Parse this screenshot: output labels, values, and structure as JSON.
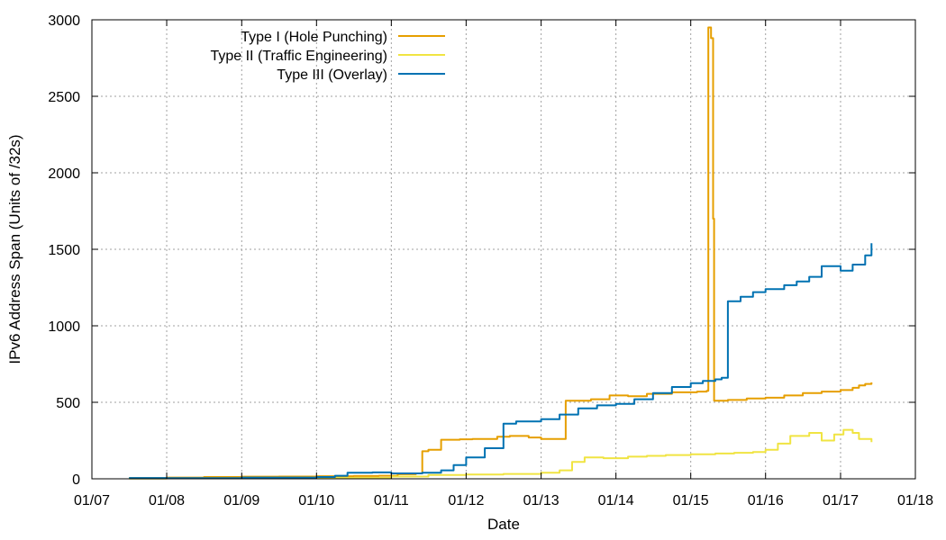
{
  "chart_data": {
    "type": "line",
    "title": "",
    "xlabel": "Date",
    "ylabel": "IPv6 Address Span (Units of /32s)",
    "x_ticks": [
      "01/07",
      "01/08",
      "01/09",
      "01/10",
      "01/11",
      "01/12",
      "01/13",
      "01/14",
      "01/15",
      "01/16",
      "01/17",
      "01/18"
    ],
    "xlim": [
      "2007-01-01",
      "2018-01-01"
    ],
    "ylim": [
      0,
      3000
    ],
    "y_ticks": [
      0,
      500,
      1000,
      1500,
      2000,
      2500,
      3000
    ],
    "grid": true,
    "legend_position": "top-left",
    "step": true,
    "series": [
      {
        "name": "Type I (Hole Punching)",
        "color": "#e69f00",
        "points": [
          [
            "2007-07-01",
            5
          ],
          [
            "2008-01-01",
            8
          ],
          [
            "2008-07-01",
            12
          ],
          [
            "2009-01-01",
            14
          ],
          [
            "2009-07-01",
            15
          ],
          [
            "2010-01-01",
            17
          ],
          [
            "2010-07-01",
            18
          ],
          [
            "2010-11-01",
            20
          ],
          [
            "2011-02-01",
            30
          ],
          [
            "2011-05-01",
            35
          ],
          [
            "2011-06-01",
            180
          ],
          [
            "2011-07-01",
            190
          ],
          [
            "2011-09-01",
            255
          ],
          [
            "2011-12-01",
            258
          ],
          [
            "2012-02-01",
            260
          ],
          [
            "2012-06-01",
            275
          ],
          [
            "2012-08-01",
            280
          ],
          [
            "2012-11-01",
            270
          ],
          [
            "2013-01-01",
            260
          ],
          [
            "2013-04-15",
            260
          ],
          [
            "2013-05-01",
            510
          ],
          [
            "2013-09-01",
            520
          ],
          [
            "2013-12-01",
            545
          ],
          [
            "2014-03-01",
            540
          ],
          [
            "2014-06-01",
            555
          ],
          [
            "2014-10-01",
            565
          ],
          [
            "2015-02-01",
            570
          ],
          [
            "2015-03-20",
            575
          ],
          [
            "2015-03-28",
            2950
          ],
          [
            "2015-04-10",
            2880
          ],
          [
            "2015-04-20",
            1700
          ],
          [
            "2015-04-25",
            510
          ],
          [
            "2015-07-01",
            515
          ],
          [
            "2015-10-01",
            525
          ],
          [
            "2016-01-01",
            530
          ],
          [
            "2016-04-01",
            545
          ],
          [
            "2016-07-01",
            560
          ],
          [
            "2016-10-01",
            570
          ],
          [
            "2017-01-01",
            580
          ],
          [
            "2017-03-01",
            595
          ],
          [
            "2017-04-01",
            610
          ],
          [
            "2017-05-01",
            620
          ],
          [
            "2017-06-01",
            630
          ]
        ]
      },
      {
        "name": "Type II (Traffic Engineering)",
        "color": "#f0e442",
        "points": [
          [
            "2007-07-01",
            2
          ],
          [
            "2008-01-01",
            3
          ],
          [
            "2009-01-01",
            4
          ],
          [
            "2010-01-01",
            6
          ],
          [
            "2011-01-01",
            15
          ],
          [
            "2011-07-01",
            25
          ],
          [
            "2012-01-01",
            28
          ],
          [
            "2012-07-01",
            32
          ],
          [
            "2013-01-01",
            40
          ],
          [
            "2013-04-01",
            55
          ],
          [
            "2013-06-01",
            110
          ],
          [
            "2013-08-01",
            140
          ],
          [
            "2013-11-01",
            135
          ],
          [
            "2014-03-01",
            145
          ],
          [
            "2014-06-01",
            150
          ],
          [
            "2014-09-01",
            155
          ],
          [
            "2015-01-01",
            160
          ],
          [
            "2015-05-01",
            165
          ],
          [
            "2015-08-01",
            170
          ],
          [
            "2015-11-01",
            175
          ],
          [
            "2016-01-01",
            190
          ],
          [
            "2016-03-01",
            230
          ],
          [
            "2016-05-01",
            280
          ],
          [
            "2016-08-01",
            300
          ],
          [
            "2016-10-01",
            250
          ],
          [
            "2016-12-01",
            290
          ],
          [
            "2017-01-15",
            320
          ],
          [
            "2017-03-01",
            300
          ],
          [
            "2017-04-01",
            260
          ],
          [
            "2017-06-01",
            240
          ]
        ]
      },
      {
        "name": "Type III (Overlay)",
        "color": "#0072b2",
        "points": [
          [
            "2007-07-01",
            5
          ],
          [
            "2008-01-01",
            4
          ],
          [
            "2009-01-01",
            8
          ],
          [
            "2010-01-01",
            12
          ],
          [
            "2010-04-01",
            20
          ],
          [
            "2010-06-01",
            40
          ],
          [
            "2010-10-01",
            42
          ],
          [
            "2011-01-01",
            35
          ],
          [
            "2011-06-01",
            40
          ],
          [
            "2011-09-01",
            55
          ],
          [
            "2011-11-01",
            90
          ],
          [
            "2012-01-01",
            140
          ],
          [
            "2012-04-01",
            200
          ],
          [
            "2012-07-01",
            360
          ],
          [
            "2012-09-01",
            375
          ],
          [
            "2013-01-01",
            390
          ],
          [
            "2013-04-01",
            420
          ],
          [
            "2013-07-01",
            460
          ],
          [
            "2013-10-01",
            480
          ],
          [
            "2014-01-01",
            490
          ],
          [
            "2014-04-01",
            520
          ],
          [
            "2014-07-01",
            560
          ],
          [
            "2014-10-01",
            600
          ],
          [
            "2015-01-01",
            625
          ],
          [
            "2015-03-01",
            640
          ],
          [
            "2015-05-01",
            650
          ],
          [
            "2015-06-01",
            660
          ],
          [
            "2015-07-01",
            1160
          ],
          [
            "2015-09-01",
            1190
          ],
          [
            "2015-11-01",
            1220
          ],
          [
            "2016-01-01",
            1240
          ],
          [
            "2016-04-01",
            1265
          ],
          [
            "2016-06-01",
            1290
          ],
          [
            "2016-08-01",
            1320
          ],
          [
            "2016-10-01",
            1390
          ],
          [
            "2017-01-01",
            1360
          ],
          [
            "2017-03-01",
            1400
          ],
          [
            "2017-05-01",
            1460
          ],
          [
            "2017-06-01",
            1540
          ]
        ]
      }
    ]
  }
}
